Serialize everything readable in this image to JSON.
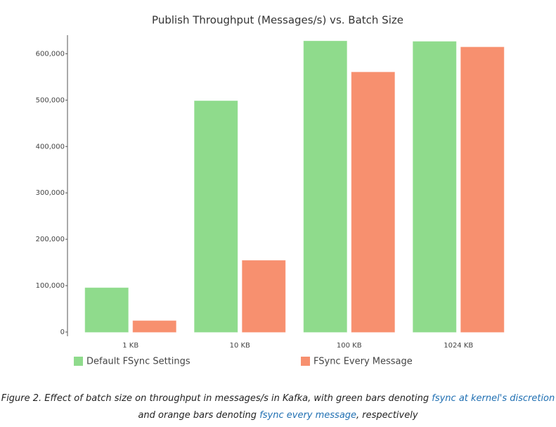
{
  "chart_data": {
    "type": "bar",
    "title": "Publish Throughput (Messages/s) vs. Batch Size",
    "categories": [
      "1 KB",
      "10 KB",
      "100 KB",
      "1024 KB"
    ],
    "series": [
      {
        "name": "Default FSync Settings",
        "color": "#8fdb8c",
        "values": [
          95000,
          498000,
          627000,
          626000
        ]
      },
      {
        "name": "FSync Every Message",
        "color": "#f7906f",
        "values": [
          24000,
          154000,
          560000,
          614000
        ]
      }
    ],
    "ylim": [
      0,
      640000
    ],
    "yticks": [
      0,
      {
        "value": 100000,
        "label": "100,000"
      },
      {
        "value": 200000,
        "label": "200,000"
      },
      {
        "value": 300000,
        "label": "300,000"
      },
      {
        "value": 400000,
        "label": "400,000"
      },
      {
        "value": 500000,
        "label": "500,000"
      },
      {
        "value": 600000,
        "label": "600,000"
      }
    ],
    "grid": false,
    "legend": "bottom"
  },
  "caption": {
    "text1": "Figure 2. Effect of batch size on throughput in messages/s in Kafka, with green bars denoting ",
    "link1": "fsync at kernel's discretion",
    "text2": "and orange bars denoting ",
    "link2": "fsync every message",
    "text3": ", respectively"
  }
}
